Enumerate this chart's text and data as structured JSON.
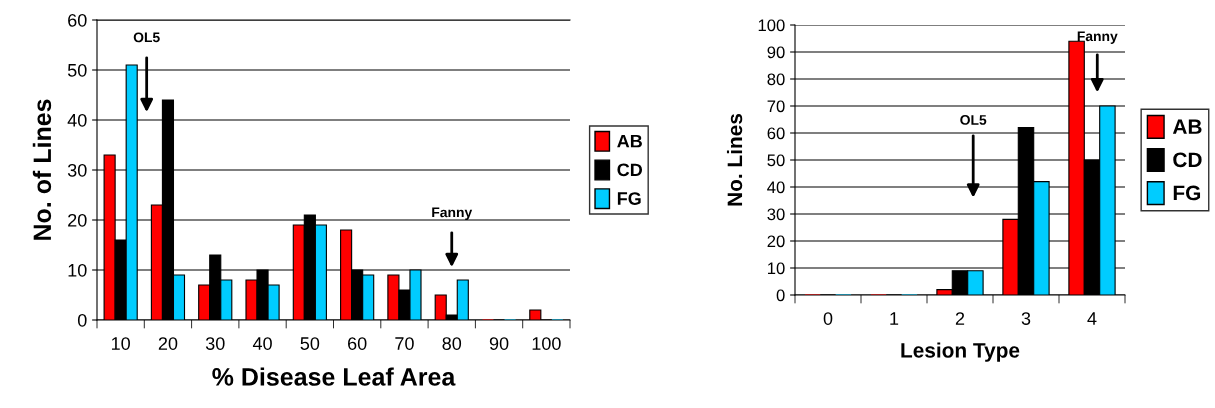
{
  "chart_data": [
    {
      "type": "bar",
      "xlabel": "% Disease Leaf Area",
      "ylabel": "No. of Lines",
      "categories": [
        "10",
        "20",
        "30",
        "40",
        "50",
        "60",
        "70",
        "80",
        "90",
        "100"
      ],
      "series": [
        {
          "name": "AB",
          "color": "#ff0000",
          "values": [
            33,
            23,
            7,
            8,
            19,
            18,
            9,
            5,
            0,
            2
          ]
        },
        {
          "name": "CD",
          "color": "#000000",
          "values": [
            16,
            44,
            13,
            10,
            21,
            10,
            6,
            1,
            0,
            0
          ]
        },
        {
          "name": "FG",
          "color": "#00ccff",
          "values": [
            51,
            9,
            8,
            7,
            19,
            9,
            10,
            8,
            0,
            0
          ]
        }
      ],
      "ylim": [
        0,
        60
      ],
      "yticks": [
        0,
        10,
        20,
        30,
        40,
        50,
        60
      ],
      "grid": "y",
      "legend": "right",
      "annotations": [
        "OL5",
        "Fanny"
      ]
    },
    {
      "type": "bar",
      "xlabel": "Lesion Type",
      "ylabel": "No. Lines",
      "categories": [
        "0",
        "1",
        "2",
        "3",
        "4"
      ],
      "series": [
        {
          "name": "AB",
          "color": "#ff0000",
          "values": [
            0,
            0,
            2,
            28,
            94
          ]
        },
        {
          "name": "CD",
          "color": "#000000",
          "values": [
            0,
            0,
            9,
            62,
            50
          ]
        },
        {
          "name": "FG",
          "color": "#00ccff",
          "values": [
            0,
            0,
            9,
            42,
            70
          ]
        }
      ],
      "ylim": [
        0,
        100
      ],
      "yticks": [
        0,
        10,
        20,
        30,
        40,
        50,
        60,
        70,
        80,
        90,
        100
      ],
      "grid": "y",
      "legend": "right",
      "annotations": [
        "OL5",
        "Fanny"
      ]
    }
  ]
}
